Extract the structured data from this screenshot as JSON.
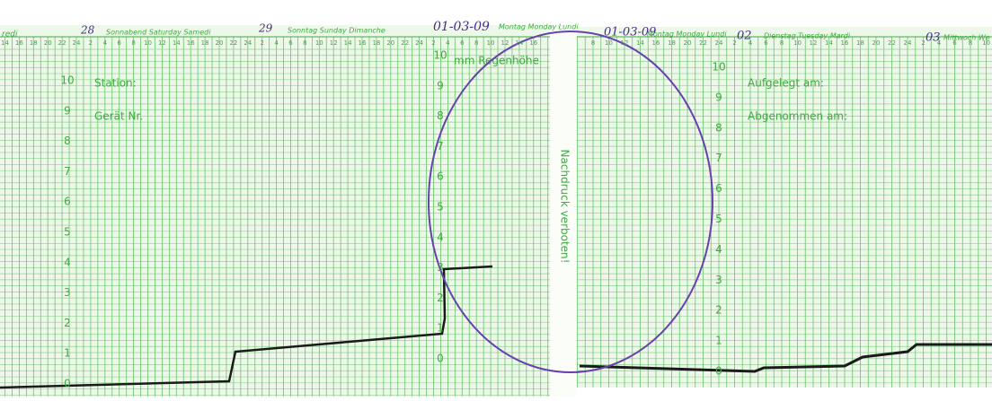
{
  "left_strip": {
    "edge_label": "redi",
    "days": [
      {
        "date": "28",
        "label": "Sonnabend Saturday Samedi"
      },
      {
        "date": "29",
        "label": "Sonntag Sunday Dimanche"
      },
      {
        "date": "01-03-09",
        "label": "Montag Monday Lundi"
      }
    ],
    "unit_label": "mm Regenhöhe",
    "fields": [
      "Station:",
      "Gerät Nr."
    ]
  },
  "right_strip": {
    "days": [
      {
        "date": "01-03-09",
        "label": "Montag Monday Lundi"
      },
      {
        "date": "02",
        "label": "Dienstag Tuesday Mardi"
      },
      {
        "date": "03",
        "label": "Mittwoch We"
      }
    ],
    "fields": [
      "Aufgelegt am:",
      "Abgenommen am:"
    ]
  },
  "margin_text": "Nachdruck verboten!",
  "scale": [
    10,
    9,
    8,
    7,
    6,
    5,
    4,
    3,
    2,
    1,
    0
  ],
  "hours": [
    2,
    4,
    6,
    8,
    10,
    12,
    14,
    16,
    18,
    20,
    22,
    24
  ]
}
